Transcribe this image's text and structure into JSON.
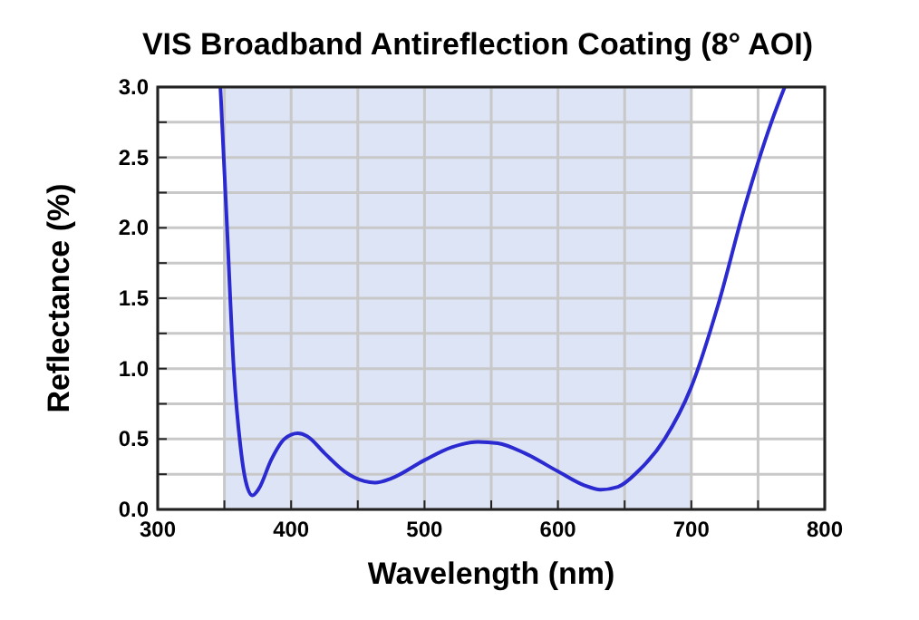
{
  "chart_data": {
    "type": "line",
    "title": "VIS Broadband Antireflection Coating (8° AOI)",
    "xlabel": "Wavelength (nm)",
    "ylabel": "Reflectance (%)",
    "x": [
      347,
      352,
      357,
      362,
      366,
      371,
      376,
      385,
      395,
      405,
      412,
      425,
      440,
      455,
      463,
      475,
      500,
      520,
      540,
      555,
      575,
      600,
      620,
      632,
      645,
      660,
      680,
      700,
      720,
      740,
      760,
      770
    ],
    "series": [
      {
        "color": "#2a2ad0",
        "values": [
          3.0,
          2.0,
          1.0,
          0.45,
          0.2,
          0.1,
          0.15,
          0.35,
          0.5,
          0.54,
          0.52,
          0.4,
          0.27,
          0.2,
          0.19,
          0.22,
          0.35,
          0.44,
          0.48,
          0.47,
          0.4,
          0.27,
          0.17,
          0.14,
          0.16,
          0.27,
          0.5,
          0.87,
          1.45,
          2.15,
          2.75,
          3.0
        ]
      }
    ],
    "xlim": [
      300,
      800
    ],
    "ylim": [
      0,
      3
    ],
    "xticks": [
      300,
      {
        "value": 350,
        "label": null
      },
      400,
      {
        "value": 450,
        "label": null
      },
      500,
      {
        "value": 550,
        "label": null
      },
      600,
      {
        "value": 650,
        "label": null
      },
      700,
      {
        "value": 750,
        "label": null
      },
      800
    ],
    "yticks": [
      {
        "value": 0,
        "label": "0.0"
      },
      {
        "value": 0.25,
        "label": null
      },
      0.5,
      {
        "value": 0.75,
        "label": null
      },
      {
        "value": 1,
        "label": "1.0"
      },
      {
        "value": 1.25,
        "label": null
      },
      1.5,
      {
        "value": 1.75,
        "label": null
      },
      {
        "value": 2,
        "label": "2.0"
      },
      {
        "value": 2.25,
        "label": null
      },
      2.5,
      {
        "value": 2.75,
        "label": null
      },
      {
        "value": 3,
        "label": "3.0"
      }
    ],
    "bands": [
      {
        "axis": "x",
        "from": 350,
        "to": 700,
        "color": "#dde4f5"
      }
    ],
    "grid": true,
    "line_style": "solid",
    "marker": "none"
  }
}
